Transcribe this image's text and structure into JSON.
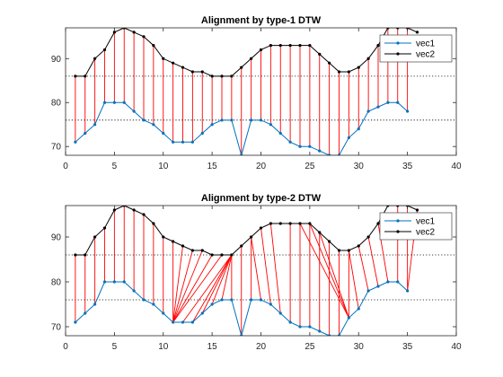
{
  "colors": {
    "vec1": "#0072BD",
    "vec2": "#000000",
    "alignment": "#FF0000",
    "axes": "#262626",
    "dotted_grid": "#000000"
  },
  "chart_data": [
    {
      "type": "line",
      "title": "Alignment by type-1 DTW",
      "xlim": [
        0,
        40
      ],
      "ylim": [
        68,
        97
      ],
      "xticks": [
        0,
        5,
        10,
        15,
        20,
        25,
        30,
        35,
        40
      ],
      "yticks": [
        70,
        80,
        90
      ],
      "dotted_ylines": [
        76,
        86
      ],
      "legend_position": "top-right",
      "series": [
        {
          "name": "vec1",
          "x": [
            1,
            2,
            3,
            4,
            5,
            6,
            7,
            8,
            9,
            10,
            11,
            12,
            13,
            14,
            15,
            16,
            17,
            18,
            19,
            20,
            21,
            22,
            23,
            24,
            25,
            26,
            27,
            28,
            29,
            30,
            31,
            32,
            33,
            34,
            35
          ],
          "y": [
            71,
            73,
            75,
            80,
            80,
            80,
            78,
            76,
            75,
            73,
            71,
            71,
            71,
            73,
            75,
            76,
            76,
            68,
            76,
            76,
            75,
            73,
            71,
            70,
            70,
            69,
            68,
            68,
            72,
            74,
            78,
            79,
            80,
            80,
            78
          ]
        },
        {
          "name": "vec2",
          "x": [
            1,
            2,
            3,
            4,
            5,
            6,
            7,
            8,
            9,
            10,
            11,
            12,
            13,
            14,
            15,
            16,
            17,
            18,
            19,
            20,
            21,
            22,
            23,
            24,
            25,
            26,
            27,
            28,
            29,
            30,
            31,
            32,
            33,
            34,
            35,
            36
          ],
          "y": [
            86,
            86,
            90,
            92,
            96,
            97,
            96,
            95,
            93,
            90,
            89,
            88,
            87,
            87,
            86,
            86,
            86,
            88,
            90,
            92,
            93,
            93,
            93,
            93,
            93,
            91,
            89,
            87,
            87,
            88,
            90,
            93,
            97,
            97,
            97,
            96
          ]
        }
      ],
      "alignment": [
        [
          1,
          1
        ],
        [
          2,
          2
        ],
        [
          3,
          3
        ],
        [
          4,
          4
        ],
        [
          5,
          5
        ],
        [
          6,
          6
        ],
        [
          7,
          7
        ],
        [
          8,
          8
        ],
        [
          9,
          9
        ],
        [
          10,
          10
        ],
        [
          11,
          11
        ],
        [
          12,
          12
        ],
        [
          13,
          13
        ],
        [
          14,
          14
        ],
        [
          15,
          15
        ],
        [
          16,
          16
        ],
        [
          17,
          17
        ],
        [
          18,
          18
        ],
        [
          19,
          19
        ],
        [
          20,
          20
        ],
        [
          21,
          21
        ],
        [
          22,
          22
        ],
        [
          23,
          23
        ],
        [
          24,
          24
        ],
        [
          25,
          25
        ],
        [
          26,
          26
        ],
        [
          27,
          27
        ],
        [
          28,
          28
        ],
        [
          29,
          29
        ],
        [
          30,
          30
        ],
        [
          31,
          31
        ],
        [
          32,
          32
        ],
        [
          33,
          33
        ],
        [
          34,
          34
        ],
        [
          35,
          35
        ]
      ]
    },
    {
      "type": "line",
      "title": "Alignment by type-2 DTW",
      "xlim": [
        0,
        40
      ],
      "ylim": [
        68,
        97
      ],
      "xticks": [
        0,
        5,
        10,
        15,
        20,
        25,
        30,
        35,
        40
      ],
      "yticks": [
        70,
        80,
        90
      ],
      "dotted_ylines": [
        76,
        86
      ],
      "legend_position": "top-right",
      "series": [
        {
          "name": "vec1",
          "x": [
            1,
            2,
            3,
            4,
            5,
            6,
            7,
            8,
            9,
            10,
            11,
            12,
            13,
            14,
            15,
            16,
            17,
            18,
            19,
            20,
            21,
            22,
            23,
            24,
            25,
            26,
            27,
            28,
            29,
            30,
            31,
            32,
            33,
            34,
            35
          ],
          "y": [
            71,
            73,
            75,
            80,
            80,
            80,
            78,
            76,
            75,
            73,
            71,
            71,
            71,
            73,
            75,
            76,
            76,
            68,
            76,
            76,
            75,
            73,
            71,
            70,
            70,
            69,
            68,
            68,
            72,
            74,
            78,
            79,
            80,
            80,
            78
          ]
        },
        {
          "name": "vec2",
          "x": [
            1,
            2,
            3,
            4,
            5,
            6,
            7,
            8,
            9,
            10,
            11,
            12,
            13,
            14,
            15,
            16,
            17,
            18,
            19,
            20,
            21,
            22,
            23,
            24,
            25,
            26,
            27,
            28,
            29,
            30,
            31,
            32,
            33,
            34,
            35,
            36
          ],
          "y": [
            86,
            86,
            90,
            92,
            96,
            97,
            96,
            95,
            93,
            90,
            89,
            88,
            87,
            87,
            86,
            86,
            86,
            88,
            90,
            92,
            93,
            93,
            93,
            93,
            93,
            91,
            89,
            87,
            87,
            88,
            90,
            93,
            97,
            97,
            97,
            96
          ]
        }
      ],
      "alignment": [
        [
          1,
          1
        ],
        [
          2,
          2
        ],
        [
          3,
          3
        ],
        [
          4,
          4
        ],
        [
          5,
          5
        ],
        [
          6,
          6
        ],
        [
          7,
          7
        ],
        [
          8,
          8
        ],
        [
          9,
          9
        ],
        [
          10,
          10
        ],
        [
          11,
          11
        ],
        [
          11,
          12
        ],
        [
          11,
          13
        ],
        [
          11,
          14
        ],
        [
          11,
          15
        ],
        [
          11,
          16
        ],
        [
          12,
          17
        ],
        [
          13,
          17
        ],
        [
          14,
          17
        ],
        [
          15,
          17
        ],
        [
          16,
          17
        ],
        [
          17,
          17
        ],
        [
          18,
          18
        ],
        [
          19,
          19
        ],
        [
          20,
          19
        ],
        [
          21,
          20
        ],
        [
          22,
          21
        ],
        [
          23,
          23
        ],
        [
          24,
          24
        ],
        [
          25,
          25
        ],
        [
          26,
          26
        ],
        [
          27,
          27
        ],
        [
          28,
          28
        ],
        [
          29,
          29
        ],
        [
          29,
          26
        ],
        [
          29,
          25
        ],
        [
          29,
          24
        ],
        [
          30,
          29
        ],
        [
          31,
          30
        ],
        [
          32,
          31
        ],
        [
          33,
          32
        ],
        [
          34,
          34
        ],
        [
          35,
          35
        ],
        [
          35,
          36
        ]
      ]
    }
  ]
}
